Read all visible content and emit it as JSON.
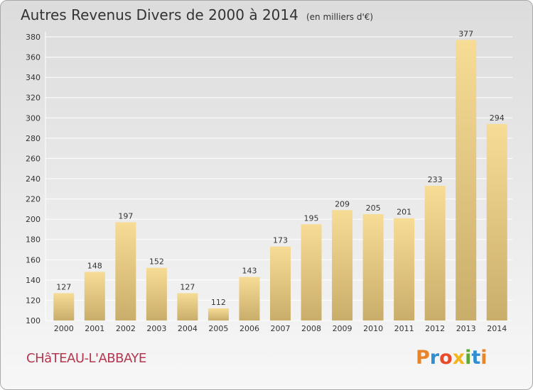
{
  "header": {
    "title": "Autres Revenus Divers de 2000 à 2014",
    "subtitle": "(en milliers d'€)"
  },
  "location": {
    "name": "CHâTEAU-L'ABBAYE"
  },
  "brand": {
    "name": "Proxiti",
    "letters": [
      {
        "char": "P",
        "color": "#e8842a"
      },
      {
        "char": "r",
        "color": "#2f8fd0"
      },
      {
        "char": "o",
        "color": "#e84b2a"
      },
      {
        "char": "x",
        "color": "#f1b521"
      },
      {
        "char": "i",
        "color": "#5fa832"
      },
      {
        "char": "t",
        "color": "#2f8fd0"
      },
      {
        "char": "i",
        "color": "#e8842a"
      }
    ]
  },
  "colors": {
    "bar_top": "#f7dc96",
    "bar_bottom": "#c9ad6a",
    "grid": "#ffffff",
    "axis_text": "#333333",
    "town_name": "#b2374f"
  },
  "chart_data": {
    "type": "bar",
    "categories": [
      "2000",
      "2001",
      "2002",
      "2003",
      "2004",
      "2005",
      "2006",
      "2007",
      "2008",
      "2009",
      "2010",
      "2011",
      "2012",
      "2013",
      "2014"
    ],
    "values": [
      127,
      148,
      197,
      152,
      127,
      112,
      143,
      173,
      195,
      209,
      205,
      201,
      233,
      377,
      294
    ],
    "title": "Autres Revenus Divers de 2000 à 2014",
    "subtitle": "(en milliers d'€)",
    "xlabel": "",
    "ylabel": "",
    "ylim": [
      100,
      380
    ],
    "yticks": [
      100,
      120,
      140,
      160,
      180,
      200,
      220,
      240,
      260,
      280,
      300,
      320,
      340,
      360,
      380
    ],
    "grid": true,
    "data_labels": true,
    "legend": "none"
  }
}
